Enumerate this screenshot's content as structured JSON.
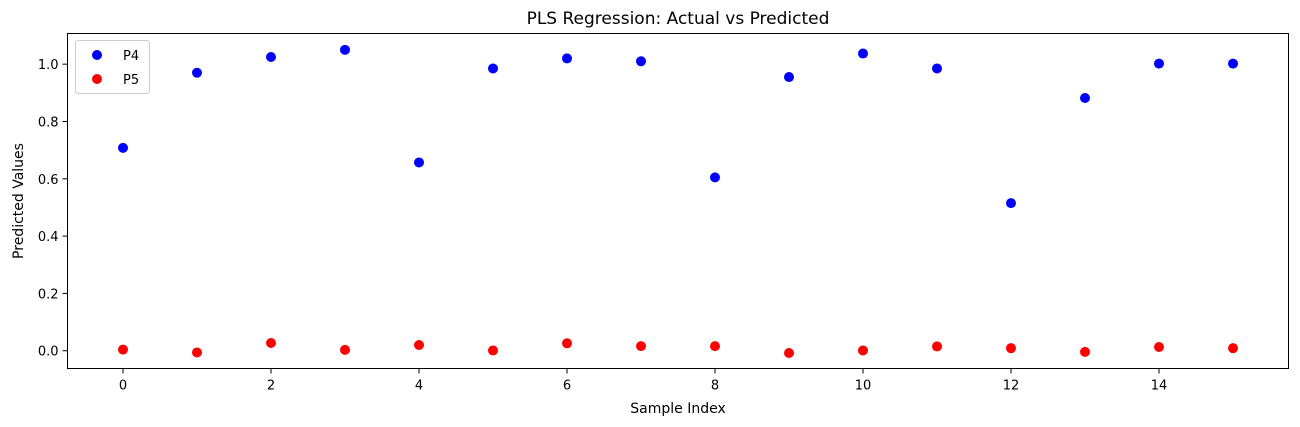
{
  "chart_data": {
    "type": "scatter",
    "title": "PLS Regression: Actual vs Predicted",
    "xlabel": "Sample Index",
    "ylabel": "Predicted Values",
    "xlim": [
      -0.75,
      15.75
    ],
    "ylim": [
      -0.062,
      1.107
    ],
    "xticks": [
      0,
      2,
      4,
      6,
      8,
      10,
      12,
      14
    ],
    "xtick_labels": [
      "0",
      "2",
      "4",
      "6",
      "8",
      "10",
      "12",
      "14"
    ],
    "yticks": [
      0.0,
      0.2,
      0.4,
      0.6,
      0.8,
      1.0
    ],
    "ytick_labels": [
      "0.0",
      "0.2",
      "0.4",
      "0.6",
      "0.8",
      "1.0"
    ],
    "grid": false,
    "legend_position": "upper-left",
    "x": [
      0,
      1,
      2,
      3,
      4,
      5,
      6,
      7,
      8,
      9,
      10,
      11,
      12,
      13,
      14,
      15
    ],
    "series": [
      {
        "name": "P4",
        "color": "#0000ff",
        "values": [
          0.708,
          0.97,
          1.025,
          1.05,
          0.657,
          0.985,
          1.02,
          1.01,
          0.605,
          0.955,
          1.037,
          0.985,
          0.515,
          0.882,
          1.002,
          1.002
        ]
      },
      {
        "name": "P5",
        "color": "#ff0000",
        "values": [
          0.004,
          -0.006,
          0.027,
          0.003,
          0.02,
          0.001,
          0.026,
          0.016,
          0.016,
          -0.008,
          0.001,
          0.015,
          0.009,
          -0.004,
          0.013,
          0.009
        ]
      }
    ]
  }
}
